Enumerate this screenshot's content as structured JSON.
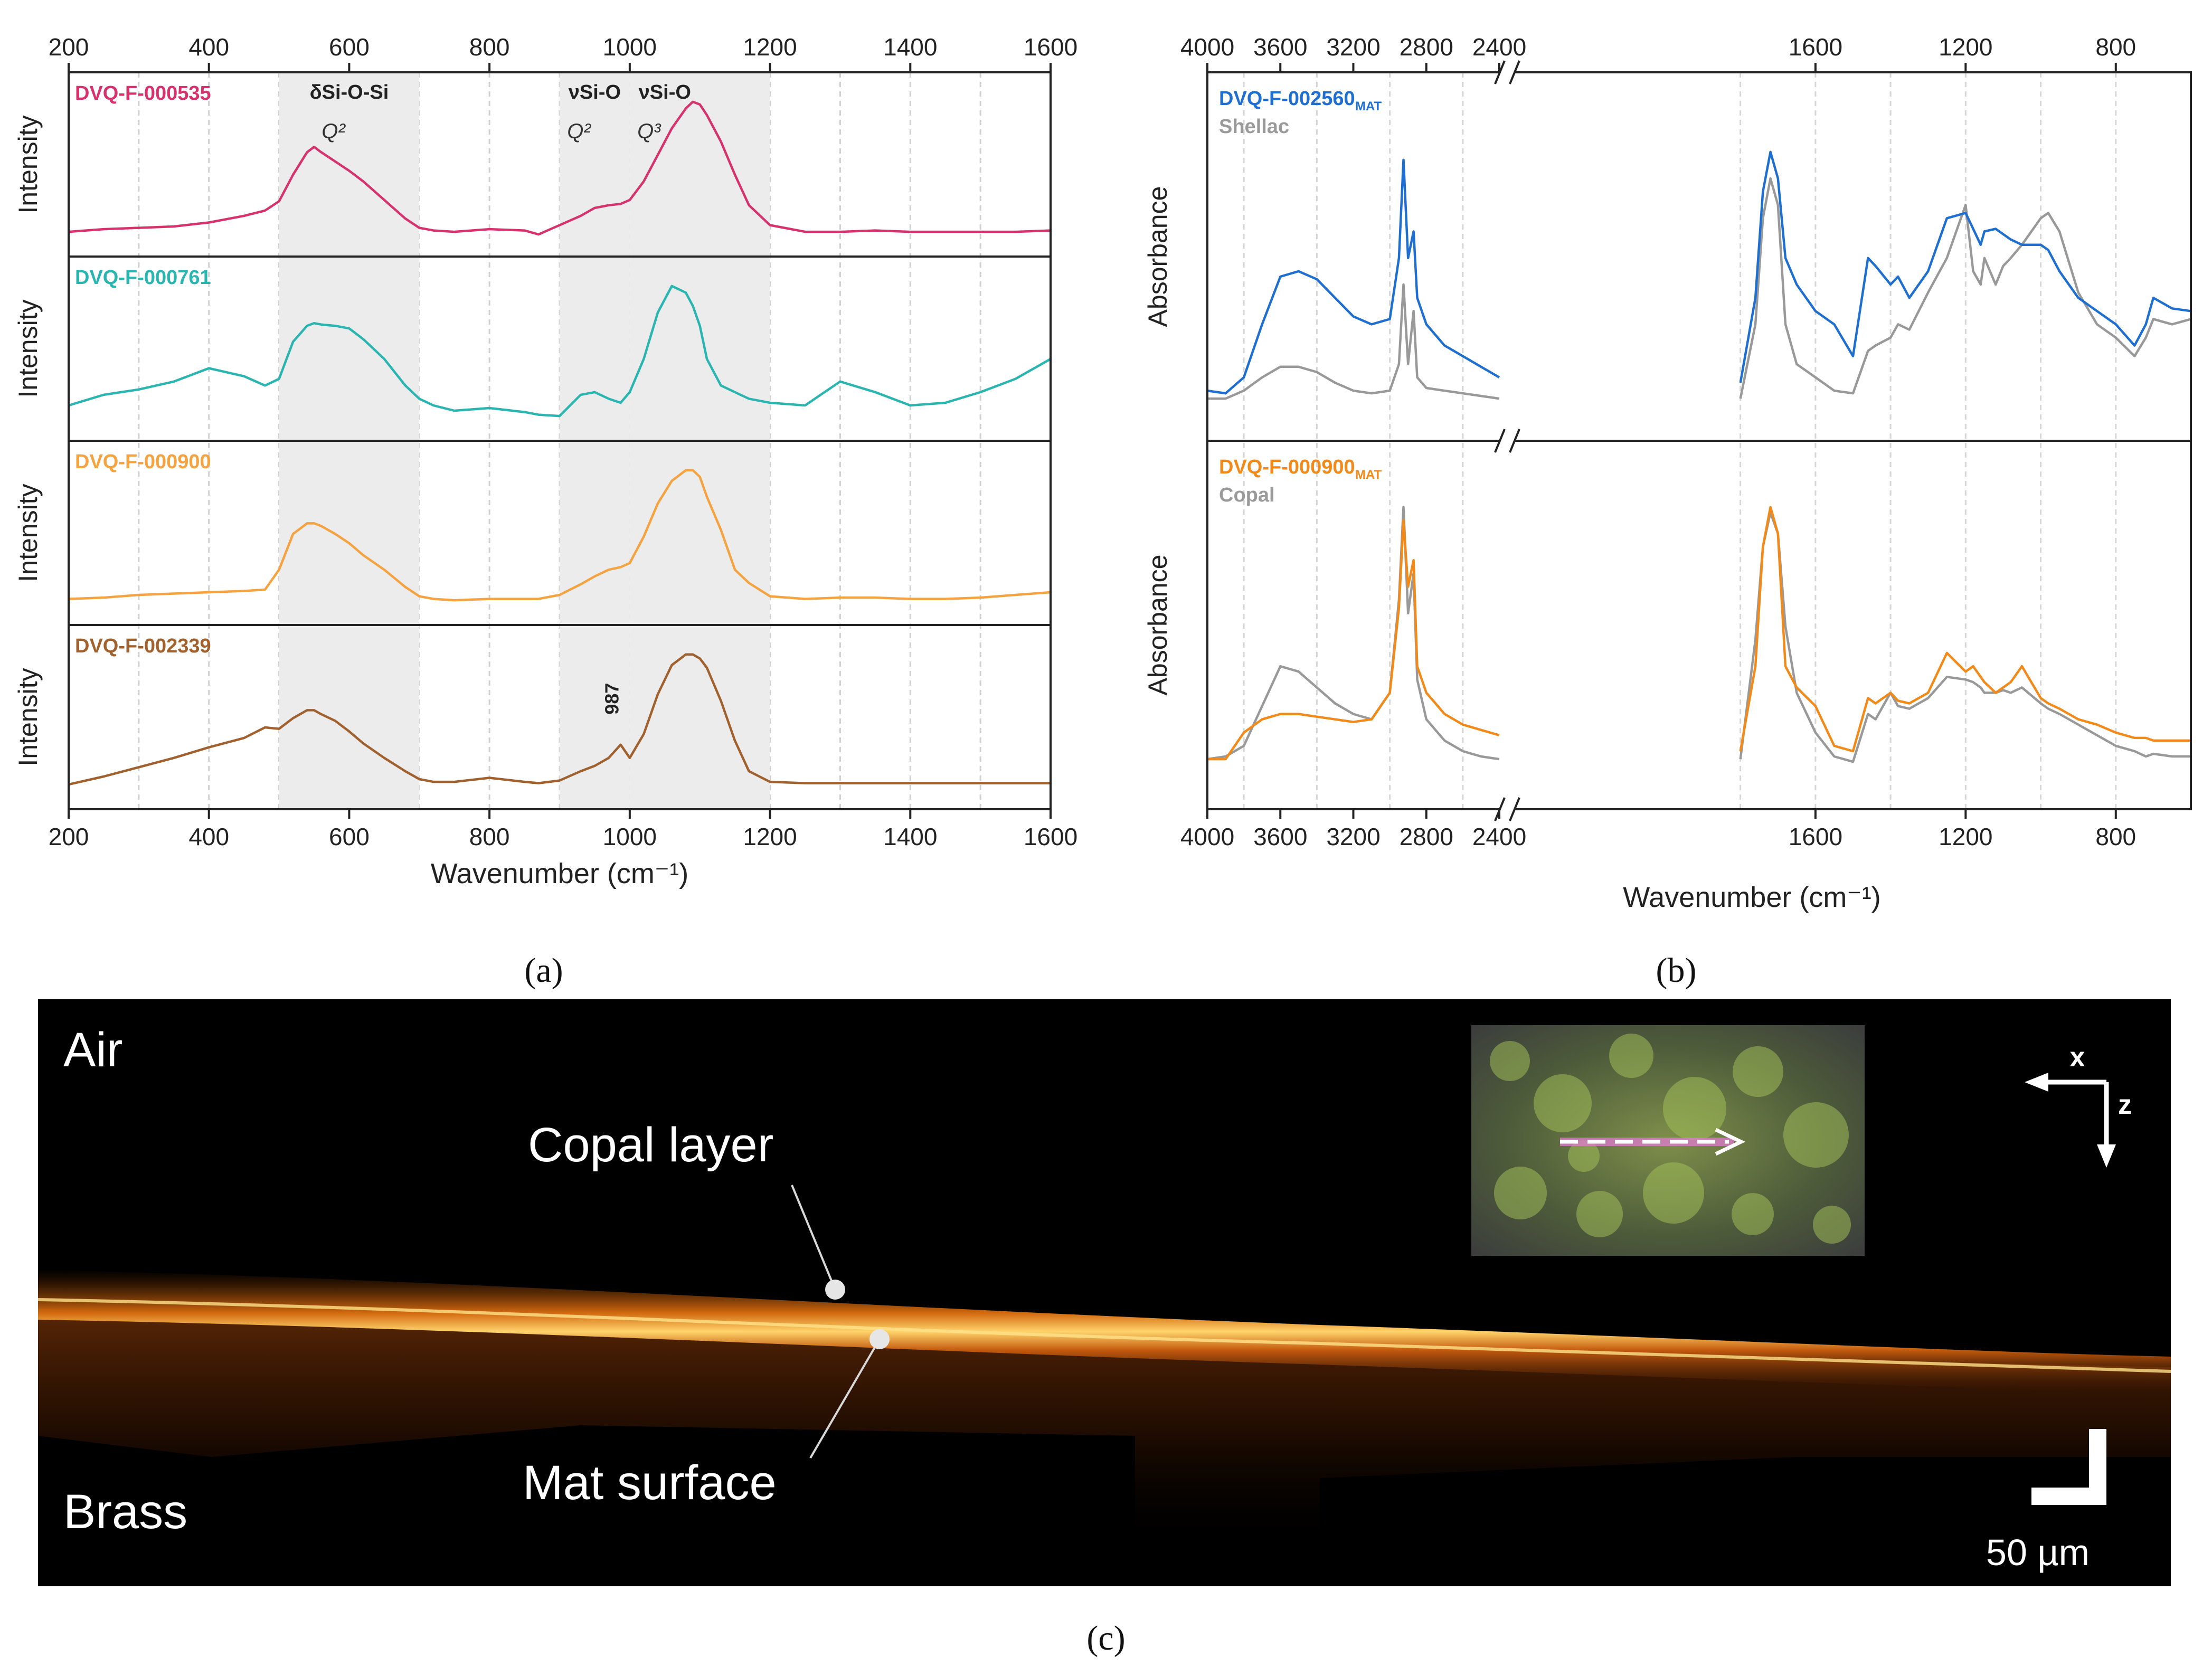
{
  "panel_labels": {
    "a": "(a)",
    "b": "(b)",
    "c": "(c)"
  },
  "colors": {
    "DVQ-F-000535": "#d6336c",
    "DVQ-F-000761": "#2bb5b1",
    "DVQ-F-000900": "#f4a340",
    "DVQ-F-002339": "#a0612e",
    "DVQ-F-002560": "#1f6fd1",
    "DVQ-F-000900_ftir": "#f28a1a",
    "reference": "#999999",
    "band_shade": "#ececec"
  },
  "chart_data": [
    {
      "id": "a",
      "type": "line",
      "title": "",
      "xlabel": "Wavenumber (cm⁻¹)",
      "ylabel": "Intensity",
      "xlim": [
        200,
        1600
      ],
      "xticks": [
        200,
        400,
        600,
        800,
        1000,
        1200,
        1400,
        1600
      ],
      "x_minor_grid": [
        300,
        500,
        700,
        900,
        1100,
        1300,
        1500
      ],
      "shaded_bands": [
        [
          500,
          700
        ],
        [
          900,
          1000
        ],
        [
          1000,
          1200
        ]
      ],
      "band_labels": [
        {
          "text": "δSi-O-Si",
          "sub": "Q²",
          "x": 600
        },
        {
          "text": "νSi-O",
          "sub": "Q²",
          "x": 950
        },
        {
          "text": "νSi-O",
          "sub": "Q³",
          "x": 1050
        }
      ],
      "annotation": {
        "text": "987",
        "x": 987,
        "panel": 3
      },
      "x": [
        200,
        250,
        300,
        350,
        400,
        450,
        480,
        500,
        520,
        540,
        550,
        560,
        580,
        600,
        620,
        650,
        680,
        700,
        720,
        750,
        800,
        850,
        870,
        900,
        930,
        950,
        970,
        987,
        1000,
        1020,
        1040,
        1060,
        1080,
        1090,
        1100,
        1110,
        1130,
        1150,
        1170,
        1200,
        1250,
        1300,
        1350,
        1400,
        1450,
        1500,
        1550,
        1600
      ],
      "series": [
        {
          "name": "DVQ-F-000535",
          "values": [
            0.02,
            0.04,
            0.05,
            0.06,
            0.09,
            0.14,
            0.18,
            0.25,
            0.45,
            0.62,
            0.66,
            0.62,
            0.55,
            0.48,
            0.4,
            0.26,
            0.12,
            0.05,
            0.03,
            0.02,
            0.04,
            0.03,
            0.0,
            0.07,
            0.14,
            0.2,
            0.22,
            0.23,
            0.26,
            0.4,
            0.6,
            0.8,
            0.95,
            1.0,
            0.98,
            0.9,
            0.7,
            0.45,
            0.22,
            0.07,
            0.02,
            0.02,
            0.03,
            0.02,
            0.02,
            0.02,
            0.02,
            0.03
          ]
        },
        {
          "name": "DVQ-F-000761",
          "values": [
            0.1,
            0.18,
            0.22,
            0.28,
            0.38,
            0.32,
            0.25,
            0.3,
            0.58,
            0.7,
            0.72,
            0.71,
            0.7,
            0.68,
            0.6,
            0.45,
            0.25,
            0.15,
            0.1,
            0.06,
            0.08,
            0.05,
            0.03,
            0.02,
            0.18,
            0.2,
            0.15,
            0.12,
            0.2,
            0.45,
            0.8,
            1.0,
            0.95,
            0.85,
            0.7,
            0.45,
            0.25,
            0.2,
            0.15,
            0.12,
            0.1,
            0.28,
            0.2,
            0.1,
            0.12,
            0.2,
            0.3,
            0.45
          ]
        },
        {
          "name": "DVQ-F-000900",
          "values": [
            0.03,
            0.04,
            0.06,
            0.07,
            0.08,
            0.09,
            0.1,
            0.25,
            0.52,
            0.6,
            0.6,
            0.58,
            0.52,
            0.45,
            0.36,
            0.25,
            0.12,
            0.05,
            0.03,
            0.02,
            0.03,
            0.03,
            0.03,
            0.06,
            0.14,
            0.2,
            0.25,
            0.27,
            0.3,
            0.5,
            0.75,
            0.92,
            1.0,
            1.0,
            0.95,
            0.8,
            0.55,
            0.25,
            0.15,
            0.05,
            0.03,
            0.04,
            0.04,
            0.03,
            0.03,
            0.04,
            0.06,
            0.08
          ]
        },
        {
          "name": "DVQ-F-002339",
          "values": [
            0.02,
            0.08,
            0.15,
            0.22,
            0.3,
            0.37,
            0.45,
            0.44,
            0.52,
            0.58,
            0.58,
            0.55,
            0.5,
            0.42,
            0.33,
            0.22,
            0.12,
            0.06,
            0.04,
            0.04,
            0.07,
            0.04,
            0.03,
            0.05,
            0.12,
            0.16,
            0.22,
            0.32,
            0.22,
            0.4,
            0.7,
            0.92,
            1.0,
            1.0,
            0.97,
            0.9,
            0.65,
            0.35,
            0.12,
            0.04,
            0.03,
            0.03,
            0.03,
            0.03,
            0.03,
            0.03,
            0.03,
            0.03
          ]
        }
      ]
    },
    {
      "id": "b",
      "type": "line",
      "title": "",
      "xlabel": "Wavenumber (cm⁻¹)",
      "ylabel": "Absorbance",
      "left_segment": {
        "xlim": [
          4000,
          2400
        ],
        "xticks": [
          4000,
          3600,
          3200,
          2800,
          2400
        ]
      },
      "right_segment": {
        "xlim": [
          2400,
          600
        ],
        "xticks": [
          1600,
          1200,
          800
        ]
      },
      "x": [
        4000,
        3900,
        3800,
        3700,
        3600,
        3500,
        3400,
        3300,
        3200,
        3100,
        3000,
        2950,
        2925,
        2900,
        2870,
        2850,
        2800,
        2700,
        2600,
        2500,
        2400,
        1800,
        1760,
        1740,
        1720,
        1700,
        1680,
        1650,
        1600,
        1550,
        1500,
        1460,
        1440,
        1400,
        1380,
        1350,
        1300,
        1250,
        1200,
        1180,
        1160,
        1150,
        1120,
        1100,
        1080,
        1050,
        1000,
        980,
        950,
        900,
        850,
        800,
        750,
        720,
        700,
        650,
        600
      ],
      "panels": [
        {
          "series": [
            {
              "name": "DVQ-F-002560",
              "sub": "MAT",
              "values": [
                0.05,
                0.04,
                0.1,
                0.3,
                0.48,
                0.5,
                0.47,
                0.4,
                0.33,
                0.3,
                0.32,
                0.55,
                0.92,
                0.55,
                0.65,
                0.4,
                0.3,
                0.22,
                0.18,
                0.14,
                0.1,
                0.08,
                0.4,
                0.8,
                0.95,
                0.85,
                0.55,
                0.45,
                0.35,
                0.3,
                0.18,
                0.55,
                0.52,
                0.45,
                0.48,
                0.4,
                0.5,
                0.7,
                0.72,
                0.66,
                0.6,
                0.65,
                0.66,
                0.64,
                0.62,
                0.6,
                0.6,
                0.58,
                0.5,
                0.4,
                0.35,
                0.3,
                0.22,
                0.3,
                0.4,
                0.36,
                0.35
              ]
            },
            {
              "name": "Shellac",
              "sub": "",
              "values": [
                0.02,
                0.02,
                0.05,
                0.1,
                0.14,
                0.14,
                0.12,
                0.08,
                0.05,
                0.04,
                0.05,
                0.15,
                0.45,
                0.15,
                0.35,
                0.1,
                0.06,
                0.05,
                0.04,
                0.03,
                0.02,
                0.02,
                0.3,
                0.7,
                0.85,
                0.75,
                0.3,
                0.15,
                0.1,
                0.05,
                0.04,
                0.2,
                0.22,
                0.25,
                0.3,
                0.28,
                0.42,
                0.55,
                0.75,
                0.5,
                0.45,
                0.55,
                0.45,
                0.52,
                0.55,
                0.6,
                0.7,
                0.72,
                0.65,
                0.42,
                0.3,
                0.25,
                0.18,
                0.25,
                0.32,
                0.3,
                0.32
              ]
            }
          ]
        },
        {
          "series": [
            {
              "name": "DVQ-F-000900",
              "sub": "MAT",
              "values": [
                0.05,
                0.05,
                0.15,
                0.2,
                0.22,
                0.22,
                0.21,
                0.2,
                0.19,
                0.2,
                0.3,
                0.62,
                0.95,
                0.7,
                0.8,
                0.4,
                0.3,
                0.22,
                0.18,
                0.16,
                0.14,
                0.08,
                0.4,
                0.85,
                1.0,
                0.9,
                0.4,
                0.32,
                0.25,
                0.1,
                0.08,
                0.28,
                0.26,
                0.3,
                0.27,
                0.26,
                0.3,
                0.45,
                0.38,
                0.4,
                0.36,
                0.34,
                0.3,
                0.32,
                0.34,
                0.4,
                0.28,
                0.26,
                0.24,
                0.2,
                0.18,
                0.15,
                0.13,
                0.13,
                0.12,
                0.12,
                0.12
              ]
            },
            {
              "name": "Copal",
              "sub": "",
              "values": [
                0.05,
                0.06,
                0.1,
                0.25,
                0.4,
                0.38,
                0.32,
                0.26,
                0.22,
                0.2,
                0.3,
                0.65,
                1.0,
                0.6,
                0.75,
                0.35,
                0.2,
                0.12,
                0.08,
                0.06,
                0.05,
                0.05,
                0.5,
                0.85,
                0.98,
                0.9,
                0.55,
                0.3,
                0.15,
                0.06,
                0.04,
                0.22,
                0.2,
                0.3,
                0.25,
                0.24,
                0.28,
                0.36,
                0.35,
                0.34,
                0.32,
                0.3,
                0.3,
                0.31,
                0.3,
                0.32,
                0.26,
                0.24,
                0.22,
                0.18,
                0.14,
                0.1,
                0.08,
                0.06,
                0.07,
                0.06,
                0.06
              ]
            }
          ]
        }
      ]
    }
  ],
  "panel_c": {
    "labels": {
      "air": "Air",
      "copal_layer": "Copal layer",
      "brass": "Brass",
      "mat_surface": "Mat surface",
      "axis_x": "x",
      "axis_z": "z",
      "scale_bar": "50 µm"
    }
  }
}
